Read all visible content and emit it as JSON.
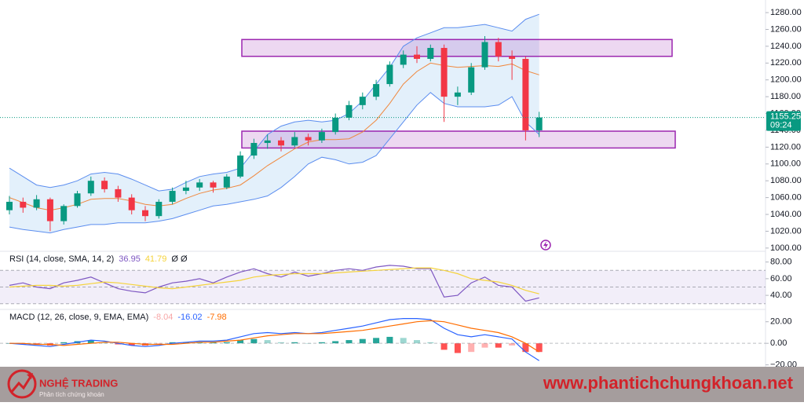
{
  "chart_data": [
    {
      "type": "candlestick",
      "ylim": [
        998,
        1295
      ],
      "yticks": [
        {
          "value": 1000,
          "label": "1000.00"
        },
        {
          "value": 1020,
          "label": "1020.00"
        },
        {
          "value": 1040,
          "label": "1040.00"
        },
        {
          "value": 1060,
          "label": "1060.00"
        },
        {
          "value": 1080,
          "label": "1080.00"
        },
        {
          "value": 1100,
          "label": "1100.00"
        },
        {
          "value": 1120,
          "label": "1120.00"
        },
        {
          "value": 1140,
          "label": "1140.00"
        },
        {
          "value": 1160,
          "label": "1160.00"
        },
        {
          "value": 1180,
          "label": "1180.00"
        },
        {
          "value": 1200,
          "label": "1200.00"
        },
        {
          "value": 1220,
          "label": "1220.00"
        },
        {
          "value": 1240,
          "label": "1240.00"
        },
        {
          "value": 1260,
          "label": "1260.00"
        },
        {
          "value": 1280,
          "label": "1280.00"
        }
      ],
      "up_color": "#089981",
      "down_color": "#f23645",
      "ohlc": [
        [
          1045,
          1062,
          1040,
          1055
        ],
        [
          1055,
          1060,
          1042,
          1048
        ],
        [
          1048,
          1063,
          1045,
          1058
        ],
        [
          1058,
          1060,
          1020,
          1032
        ],
        [
          1032,
          1052,
          1028,
          1050
        ],
        [
          1050,
          1068,
          1048,
          1065
        ],
        [
          1065,
          1085,
          1062,
          1080
        ],
        [
          1080,
          1084,
          1066,
          1070
        ],
        [
          1070,
          1074,
          1055,
          1060
        ],
        [
          1060,
          1064,
          1040,
          1045
        ],
        [
          1045,
          1050,
          1032,
          1038
        ],
        [
          1038,
          1058,
          1035,
          1055
        ],
        [
          1055,
          1072,
          1052,
          1068
        ],
        [
          1068,
          1080,
          1064,
          1072
        ],
        [
          1072,
          1082,
          1068,
          1078
        ],
        [
          1078,
          1080,
          1066,
          1072
        ],
        [
          1072,
          1088,
          1070,
          1085
        ],
        [
          1085,
          1115,
          1083,
          1110
        ],
        [
          1110,
          1130,
          1106,
          1125
        ],
        [
          1125,
          1135,
          1118,
          1128
        ],
        [
          1128,
          1132,
          1115,
          1122
        ],
        [
          1122,
          1138,
          1120,
          1132
        ],
        [
          1132,
          1136,
          1122,
          1128
        ],
        [
          1128,
          1142,
          1125,
          1138
        ],
        [
          1138,
          1160,
          1135,
          1155
        ],
        [
          1155,
          1175,
          1152,
          1170
        ],
        [
          1170,
          1185,
          1165,
          1180
        ],
        [
          1180,
          1200,
          1176,
          1195
        ],
        [
          1195,
          1222,
          1192,
          1218
        ],
        [
          1218,
          1235,
          1214,
          1230
        ],
        [
          1230,
          1240,
          1220,
          1225
        ],
        [
          1225,
          1242,
          1222,
          1238
        ],
        [
          1238,
          1242,
          1150,
          1180
        ],
        [
          1180,
          1192,
          1170,
          1185
        ],
        [
          1185,
          1220,
          1182,
          1215
        ],
        [
          1215,
          1252,
          1212,
          1245
        ],
        [
          1245,
          1250,
          1222,
          1228
        ],
        [
          1228,
          1235,
          1200,
          1225
        ],
        [
          1225,
          1228,
          1128,
          1140
        ],
        [
          1140,
          1162,
          1132,
          1155.25
        ]
      ],
      "series": [
        {
          "color": "#5b8def",
          "values": [
            1095,
            1085,
            1075,
            1072,
            1075,
            1080,
            1088,
            1090,
            1088,
            1082,
            1075,
            1068,
            1070,
            1078,
            1085,
            1088,
            1090,
            1095,
            1115,
            1135,
            1145,
            1150,
            1152,
            1150,
            1152,
            1160,
            1175,
            1195,
            1215,
            1240,
            1250,
            1256,
            1262,
            1262,
            1264,
            1266,
            1262,
            1258,
            1272,
            1278
          ]
        },
        {
          "color": "#f0883e",
          "values": [
            1060,
            1054,
            1048,
            1045,
            1048,
            1052,
            1058,
            1059,
            1059,
            1056,
            1052,
            1050,
            1052,
            1059,
            1065,
            1069,
            1071,
            1075,
            1086,
            1098,
            1108,
            1118,
            1126,
            1129,
            1129,
            1130,
            1138,
            1152,
            1172,
            1195,
            1210,
            1220,
            1217,
            1215,
            1216,
            1217,
            1216,
            1219,
            1211,
            1206
          ]
        },
        {
          "color": "#5b8def",
          "values": [
            1025,
            1022,
            1020,
            1018,
            1022,
            1025,
            1028,
            1028,
            1030,
            1030,
            1030,
            1032,
            1035,
            1040,
            1045,
            1050,
            1052,
            1055,
            1058,
            1062,
            1072,
            1085,
            1100,
            1108,
            1105,
            1100,
            1102,
            1110,
            1130,
            1150,
            1170,
            1185,
            1172,
            1168,
            1168,
            1168,
            1170,
            1180,
            1150,
            1135
          ]
        }
      ],
      "band_fill": "#e3f0fb",
      "zones": [
        [
          1228,
          1248
        ],
        [
          1119,
          1139
        ]
      ],
      "zone_color": "#9c27b0",
      "countdown": "09:24"
    },
    {
      "type": "line",
      "title": "RSI (14, close, SMA, 14, 2)",
      "extra": "Ø Ø",
      "ylim": [
        25,
        91
      ],
      "yticks": [
        {
          "value": 40,
          "label": "40.00"
        },
        {
          "value": 60,
          "label": "60.00"
        },
        {
          "value": 80,
          "label": "80.00"
        }
      ],
      "levels": [
        70,
        50,
        30
      ],
      "series": [
        {
          "color": "#7e57c2",
          "values": [
            52,
            55,
            50,
            48,
            55,
            58,
            62,
            55,
            48,
            45,
            43,
            50,
            55,
            57,
            60,
            55,
            62,
            68,
            72,
            66,
            62,
            68,
            63,
            66,
            70,
            72,
            70,
            74,
            76,
            75,
            72,
            72,
            38,
            40,
            55,
            62,
            52,
            50,
            33,
            36.95
          ]
        },
        {
          "color": "#f5d33b",
          "values": [
            50,
            51,
            52,
            52,
            51,
            52,
            54,
            56,
            55,
            53,
            51,
            49,
            48,
            50,
            52,
            54,
            56,
            58,
            62,
            64,
            65,
            66,
            66,
            66,
            67,
            68,
            69,
            70,
            71,
            72,
            73,
            73,
            70,
            66,
            60,
            58,
            56,
            52,
            46,
            41.79
          ]
        }
      ]
    },
    {
      "type": "line",
      "title": "MACD (12, 26, close, 9, EMA, EMA)",
      "ylim": [
        -21,
        30
      ],
      "yticks": [
        {
          "value": -20,
          "label": "−20.00"
        },
        {
          "value": 0,
          "label": "0.00"
        },
        {
          "value": 20,
          "label": "20.00"
        }
      ],
      "bars": {
        "up_color": "#26a69a",
        "down_color": "#ff5252",
        "values": [
          0,
          -1,
          -1,
          -2,
          1,
          2,
          3,
          1,
          -1,
          -2,
          -2,
          -1,
          1,
          1,
          1,
          1,
          1,
          3,
          4,
          3,
          1,
          1,
          0,
          1,
          2,
          3,
          4,
          5,
          6,
          5,
          3,
          1,
          -6,
          -9,
          -8,
          -4,
          -4,
          -2,
          -8,
          -8.04
        ]
      },
      "series": [
        {
          "color": "#2962ff",
          "values": [
            0,
            -1,
            -2,
            -3,
            -1,
            1,
            3,
            2,
            0,
            -2,
            -3,
            -2,
            0,
            1,
            2,
            2,
            3,
            6,
            9,
            10,
            9,
            10,
            9,
            10,
            12,
            14,
            16,
            19,
            22,
            23,
            23,
            22,
            14,
            8,
            6,
            8,
            6,
            4,
            -8,
            -16.02
          ]
        },
        {
          "color": "#ff6d00",
          "values": [
            0,
            0,
            -1,
            -1,
            -2,
            -1,
            0,
            1,
            1,
            0,
            -1,
            -1,
            -1,
            0,
            1,
            1,
            2,
            3,
            5,
            7,
            8,
            9,
            9,
            9,
            10,
            11,
            12,
            14,
            16,
            18,
            20,
            21,
            20,
            17,
            14,
            12,
            10,
            6,
            0,
            -7.98
          ]
        }
      ]
    }
  ],
  "footer": {
    "logo_title": "NGHỆ TRADING",
    "logo_subtitle": "Phân tích chứng khoán",
    "website": "www.phantichchungkhoan.net"
  }
}
